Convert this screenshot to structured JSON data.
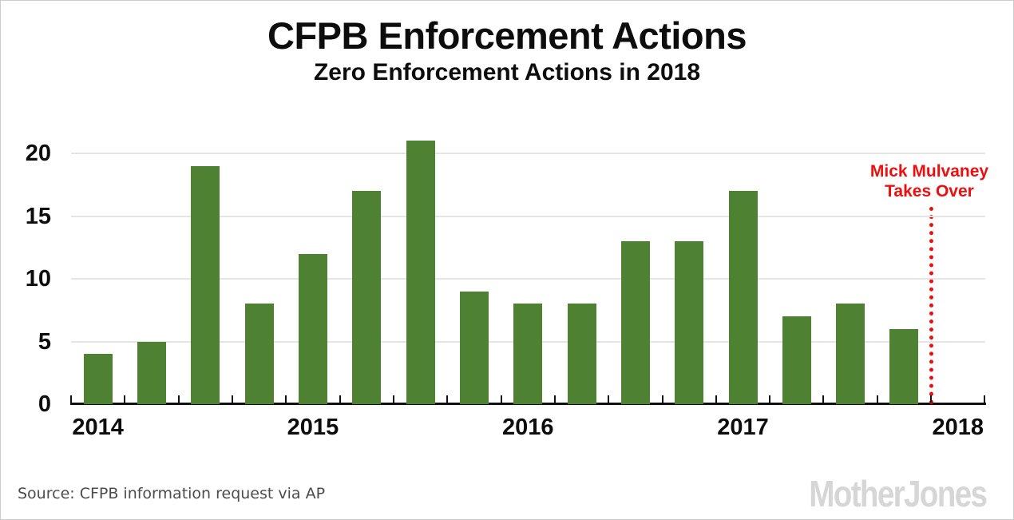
{
  "header": {
    "title": "CFPB Enforcement Actions",
    "subtitle": "Zero Enforcement Actions in 2018"
  },
  "footer": {
    "source": "Source: CFPB information request via AP",
    "logo_text": "MotherJones"
  },
  "colors": {
    "bar-green": "#4E8232",
    "accent-red": "#EE0E0E",
    "gridline": "#E5E5E5",
    "axis-black": "#111111",
    "text-gray": "#4C4C4C",
    "logo-gray": "#D6D6D6",
    "frame-border": "#CCCCCC"
  },
  "chart_data": {
    "type": "bar",
    "title": "CFPB Enforcement Actions",
    "subtitle": "Zero Enforcement Actions in 2018",
    "categories": [
      "2014 Q1",
      "2014 Q2",
      "2014 Q3",
      "2014 Q4",
      "2015 Q1",
      "2015 Q2",
      "2015 Q3",
      "2015 Q4",
      "2016 Q1",
      "2016 Q2",
      "2016 Q3",
      "2016 Q4",
      "2017 Q1",
      "2017 Q2",
      "2017 Q3",
      "2017 Q4"
    ],
    "values": [
      4,
      5,
      19,
      8,
      12,
      17,
      21,
      9,
      8,
      8,
      13,
      13,
      17,
      7,
      8,
      6
    ],
    "x_axis_year_labels": [
      "2014",
      "2015",
      "2016",
      "2017",
      "2018"
    ],
    "quarters_per_year": 4,
    "y_ticks": [
      0,
      5,
      10,
      15,
      20
    ],
    "ylim": [
      0,
      22
    ],
    "xlabel": "",
    "ylabel": "",
    "grid": true,
    "legend": false,
    "bar_color": "#4E8232",
    "annotation": {
      "lines": [
        "Mick Mulvaney",
        "Takes Over"
      ],
      "position": "vertical dotted line after 2017 Q4, before 2018",
      "color": "#EE0E0E",
      "line_style": "dotted-vertical"
    }
  }
}
